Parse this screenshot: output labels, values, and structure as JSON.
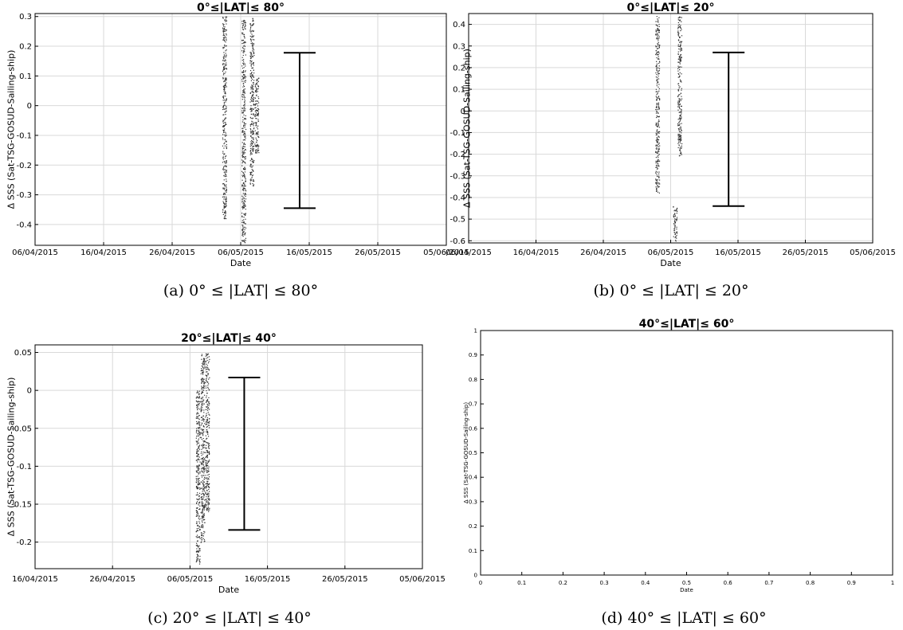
{
  "chart_data": [
    {
      "panel": "a",
      "type": "scatter",
      "title": "0°≤|LAT|≤ 80°",
      "caption": "(a) 0° ≤ |LAT| ≤ 80°",
      "xlabel": "Date",
      "ylabel": "Δ SSS (Sat-TSG-GOSUD-Sailing-ship)",
      "grid": true,
      "xlim": [
        "2015-04-06",
        "2015-06-05"
      ],
      "ylim": [
        -0.47,
        0.31
      ],
      "x_ticks": [
        "06/04/2015",
        "16/04/2015",
        "26/04/2015",
        "06/05/2015",
        "16/05/2015",
        "26/05/2015",
        "05/06/2015"
      ],
      "y_ticks": [
        "0.3",
        "0.2",
        "0.1",
        "0",
        "-0.1",
        "-0.2",
        "-0.3",
        "-0.4"
      ],
      "y_tick_values": [
        0.3,
        0.2,
        0.1,
        0,
        -0.1,
        -0.2,
        -0.3,
        -0.4
      ],
      "point_clusters": [
        {
          "date": "2015-05-03.6",
          "y_range": [
            -0.38,
            0.3
          ]
        },
        {
          "date": "2015-05-06.4",
          "y_range": [
            -0.46,
            0.29
          ]
        },
        {
          "date": "2015-05-07.6",
          "y_range": [
            -0.27,
            0.3
          ]
        },
        {
          "date": "2015-05-08.3",
          "y_range": [
            -0.16,
            0.1
          ]
        }
      ],
      "error_bar": {
        "date": "2015-05-14.6",
        "low": -0.345,
        "high": 0.178
      }
    },
    {
      "panel": "b",
      "type": "scatter",
      "title": "0°≤|LAT|≤ 20°",
      "caption": "(b) 0° ≤ |LAT| ≤ 20°",
      "xlabel": "Date",
      "ylabel": "Δ SSS (Sat-TSG-GOSUD-Sailing-ship)",
      "grid": true,
      "xlim": [
        "2015-04-06",
        "2015-06-05"
      ],
      "ylim": [
        -0.61,
        0.45
      ],
      "x_ticks": [
        "06/04/2015",
        "16/04/2015",
        "26/04/2015",
        "06/05/2015",
        "16/05/2015",
        "26/05/2015",
        "05/06/2015"
      ],
      "y_ticks": [
        "0.4",
        "0.3",
        "0.2",
        "0.1",
        "0",
        "-0.1",
        "-0.2",
        "-0.3",
        "-0.4",
        "-0.5",
        "-0.6"
      ],
      "y_tick_values": [
        0.4,
        0.3,
        0.2,
        0.1,
        0,
        -0.1,
        -0.2,
        -0.3,
        -0.4,
        -0.5,
        -0.6
      ],
      "point_clusters": [
        {
          "date": "2015-05-04.0",
          "y_range": [
            -0.38,
            0.44
          ]
        },
        {
          "date": "2015-05-06.6",
          "y_range": [
            -0.6,
            -0.44
          ]
        },
        {
          "date": "2015-05-07.3",
          "y_range": [
            -0.21,
            0.44
          ]
        }
      ],
      "error_bar": {
        "date": "2015-05-14.6",
        "low": -0.44,
        "high": 0.27
      }
    },
    {
      "panel": "c",
      "type": "scatter",
      "title": "20°≤|LAT|≤ 40°",
      "caption": "(c) 20° ≤ |LAT| ≤ 40°",
      "xlabel": "Date",
      "ylabel": "Δ SSS (Sat-TSG-GOSUD-Sailing-ship)",
      "grid": true,
      "xlim": [
        "2015-04-16",
        "2015-06-05"
      ],
      "ylim": [
        -0.235,
        0.06
      ],
      "x_ticks": [
        "16/04/2015",
        "26/04/2015",
        "06/05/2015",
        "16/05/2015",
        "26/05/2015",
        "05/06/2015"
      ],
      "y_ticks": [
        "0.05",
        "0",
        "-0.05",
        "-0.1",
        "-0.15",
        "-0.2"
      ],
      "y_tick_values": [
        0.05,
        0,
        -0.05,
        -0.1,
        -0.15,
        -0.2
      ],
      "point_clusters": [
        {
          "date": "2015-05-07.0",
          "y_range": [
            -0.23,
            0.0
          ]
        },
        {
          "date": "2015-05-07.6",
          "y_range": [
            -0.2,
            0.05
          ]
        },
        {
          "date": "2015-05-08.2",
          "y_range": [
            -0.16,
            0.05
          ]
        }
      ],
      "error_bar": {
        "date": "2015-05-13.0",
        "low": -0.184,
        "high": 0.017
      }
    },
    {
      "panel": "d",
      "type": "scatter",
      "title": "40°≤|LAT|≤ 60°",
      "caption": "(d) 40° ≤ |LAT| ≤ 60°",
      "xlabel": "Date",
      "ylabel": "Δ SSS (Sat-TSG-GOSUD-Sailing-ship)",
      "grid": false,
      "xlim": [
        0,
        1
      ],
      "ylim": [
        0,
        1
      ],
      "x_ticks": [
        "0",
        "0.1",
        "0.2",
        "0.3",
        "0.4",
        "0.5",
        "0.6",
        "0.7",
        "0.8",
        "0.9",
        "1"
      ],
      "y_ticks": [
        "0",
        "0.1",
        "0.2",
        "0.3",
        "0.4",
        "0.5",
        "0.6",
        "0.7",
        "0.8",
        "0.9",
        "1"
      ],
      "y_tick_values": [
        0,
        0.1,
        0.2,
        0.3,
        0.4,
        0.5,
        0.6,
        0.7,
        0.8,
        0.9,
        1
      ],
      "point_clusters": [],
      "error_bar": null
    }
  ]
}
